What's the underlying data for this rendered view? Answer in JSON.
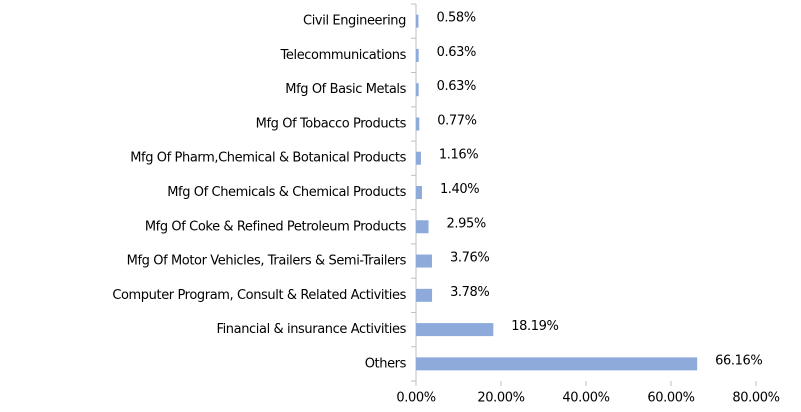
{
  "chart_data": {
    "type": "bar",
    "orientation": "horizontal",
    "categories": [
      "Civil Engineering",
      "Telecommunications",
      "Mfg Of Basic Metals",
      "Mfg Of Tobacco Products",
      "Mfg Of Pharm,Chemical & Botanical Products",
      "Mfg Of Chemicals & Chemical Products",
      "Mfg Of Coke & Refined Petroleum Products",
      "Mfg Of Motor Vehicles, Trailers & Semi-Trailers",
      "Computer Program, Consult & Related Activities",
      "Financial & insurance Activities",
      "Others"
    ],
    "values": [
      0.58,
      0.63,
      0.63,
      0.77,
      1.16,
      1.4,
      2.95,
      3.76,
      3.78,
      18.19,
      66.16
    ],
    "value_labels": [
      "0.58%",
      "0.63%",
      "0.63%",
      "0.77%",
      "1.16%",
      "1.40%",
      "2.95%",
      "3.76%",
      "3.78%",
      "18.19%",
      "66.16%"
    ],
    "color": "#8eaadb",
    "xlim": [
      0,
      80
    ],
    "xticks": [
      {
        "value": 0,
        "label": "0.00%"
      },
      {
        "value": 20,
        "label": "20.00%"
      },
      {
        "value": 40,
        "label": "40.00%"
      },
      {
        "value": 60,
        "label": "60.00%"
      },
      {
        "value": 80,
        "label": "80.00%"
      }
    ],
    "grid": false
  }
}
